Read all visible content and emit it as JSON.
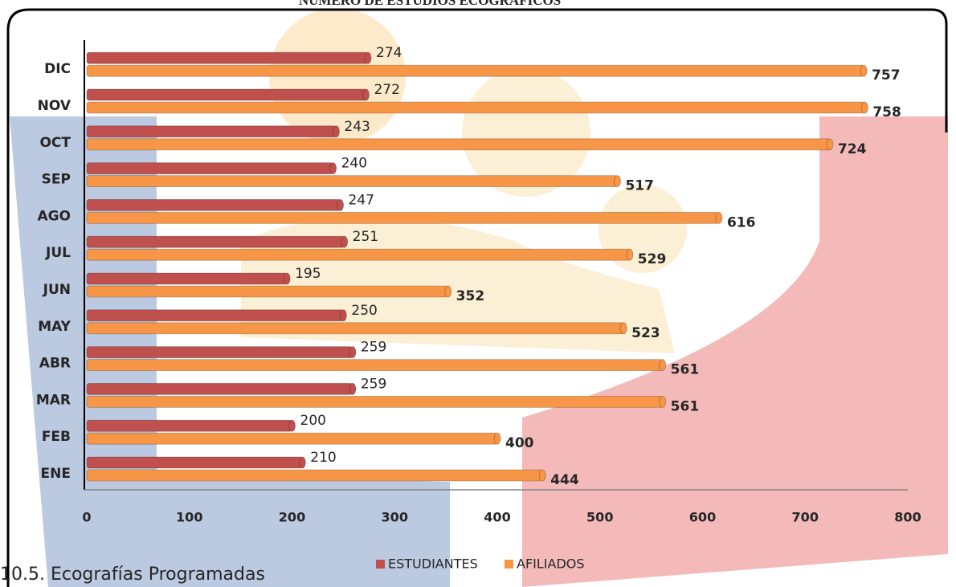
{
  "chart_data": {
    "type": "bar",
    "orientation": "horizontal",
    "title": "NÚMERO DE ESTUDIOS ECOGRÁFICOS",
    "categories": [
      "ENE",
      "FEB",
      "MAR",
      "ABR",
      "MAY",
      "JUN",
      "JUL",
      "AGO",
      "SEP",
      "OCT",
      "NOV",
      "DIC"
    ],
    "series": [
      {
        "name": "ESTUDIANTES",
        "color": "#c0504d",
        "values": [
          210,
          200,
          259,
          259,
          250,
          195,
          251,
          247,
          240,
          243,
          272,
          274
        ]
      },
      {
        "name": "AFILIADOS",
        "color": "#f79646",
        "values": [
          444,
          400,
          561,
          561,
          523,
          352,
          529,
          616,
          517,
          724,
          758,
          757
        ]
      }
    ],
    "xlim": [
      0,
      800
    ],
    "xticks": [
      0,
      100,
      200,
      300,
      400,
      500,
      600,
      700,
      800
    ],
    "legend": "bottom"
  },
  "caption": "10.5.   Ecografías Programadas"
}
